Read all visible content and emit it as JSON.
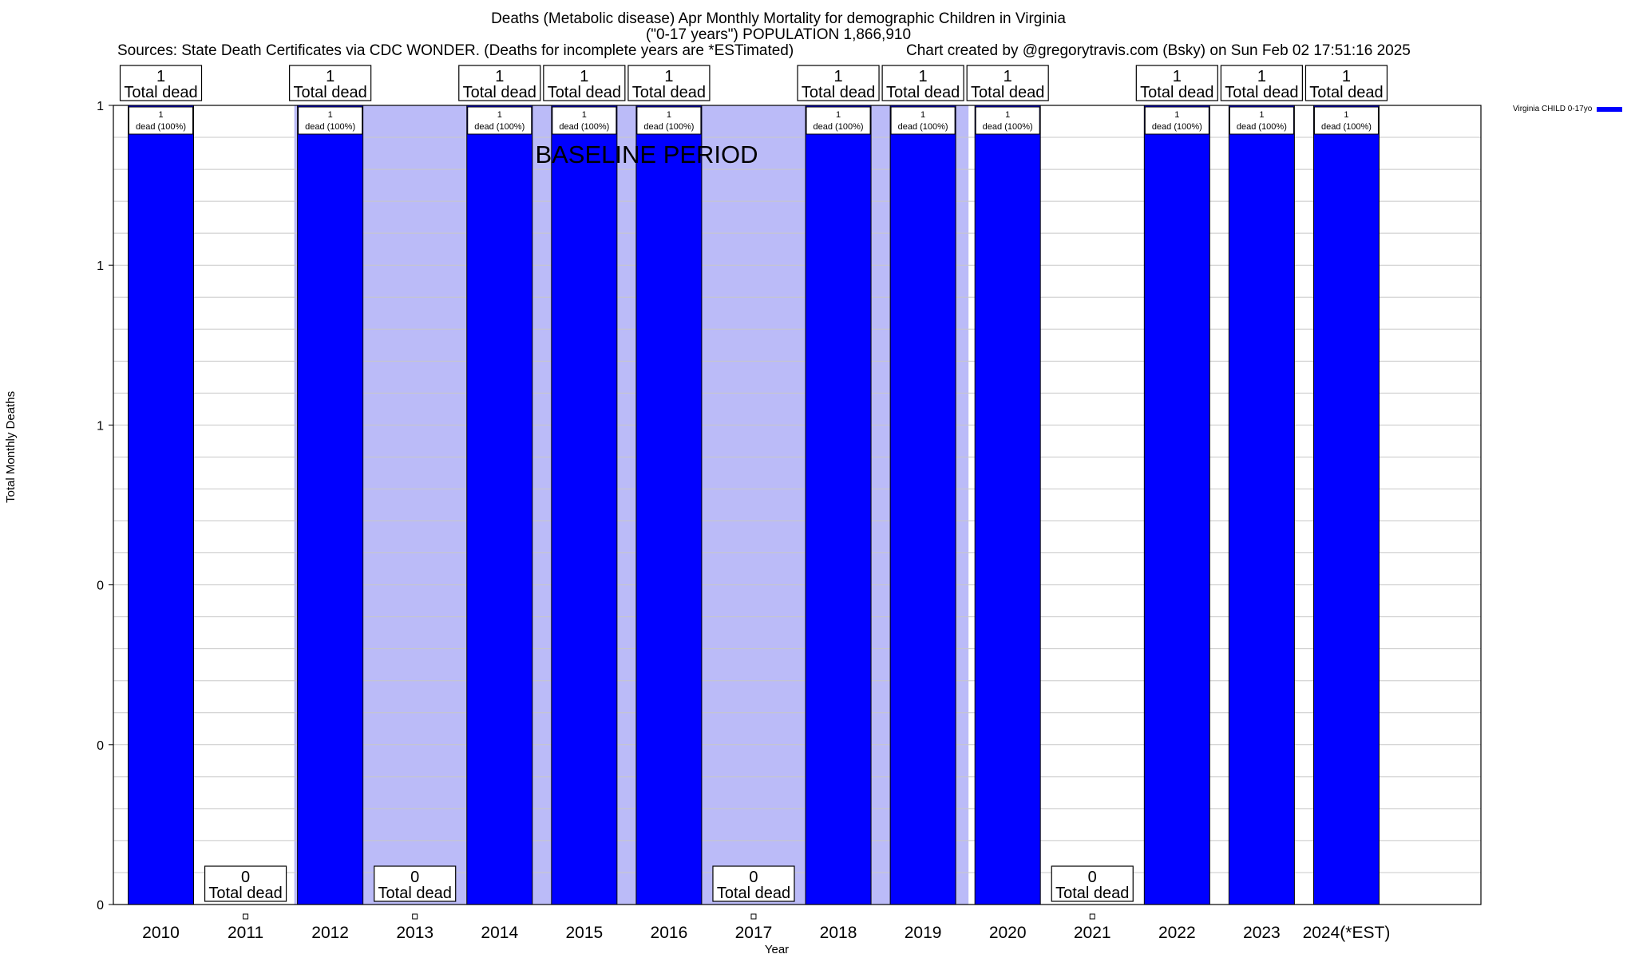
{
  "title": "Deaths (Metabolic disease) Apr Monthly Mortality for demographic Children in Virginia",
  "subtitle": "(\"0-17 years\") POPULATION 1,866,910",
  "sources": "Sources: State Death Certificates via CDC WONDER. (Deaths for incomplete years are *ESTimated)",
  "credit": "Chart created by @gregorytravis.com (Bsky) on Sun Feb 02 17:51:16 2025",
  "colors": {
    "bar": "#0000ff",
    "baseline_shade": "#bbbbf8",
    "grid": "#c8c8c8"
  },
  "chart_data": {
    "type": "bar",
    "xlabel": "Year",
    "ylabel": "Total Monthly Deaths",
    "ylim": [
      0,
      1
    ],
    "y_tick_labels": [
      "0",
      "0",
      "0",
      "1",
      "1",
      "1"
    ],
    "grid": true,
    "legend_position": "top-right",
    "categories": [
      "2010",
      "2011",
      "2012",
      "2013",
      "2014",
      "2015",
      "2016",
      "2017",
      "2018",
      "2019",
      "2020",
      "2021",
      "2022",
      "2023",
      "2024(*EST)"
    ],
    "series": [
      {
        "name": "Virginia CHILD 0-17yo",
        "values": [
          1,
          0,
          1,
          0,
          1,
          1,
          1,
          0,
          1,
          1,
          1,
          0,
          1,
          1,
          1
        ]
      }
    ],
    "total_labels": [
      {
        "value": "1",
        "caption": "Total dead"
      },
      {
        "value": "0",
        "caption": "Total dead"
      },
      {
        "value": "1",
        "caption": "Total dead"
      },
      {
        "value": "0",
        "caption": "Total dead"
      },
      {
        "value": "1",
        "caption": "Total dead"
      },
      {
        "value": "1",
        "caption": "Total dead"
      },
      {
        "value": "1",
        "caption": "Total dead"
      },
      {
        "value": "0",
        "caption": "Total dead"
      },
      {
        "value": "1",
        "caption": "Total dead"
      },
      {
        "value": "1",
        "caption": "Total dead"
      },
      {
        "value": "1",
        "caption": "Total dead"
      },
      {
        "value": "0",
        "caption": "Total dead"
      },
      {
        "value": "1",
        "caption": "Total dead"
      },
      {
        "value": "1",
        "caption": "Total dead"
      },
      {
        "value": "1",
        "caption": "Total dead"
      }
    ],
    "bar_labels": [
      "1",
      "dead (100%)"
    ],
    "baseline_period": {
      "label": "BASELINE PERIOD",
      "from": "2012",
      "to": "2019"
    }
  }
}
